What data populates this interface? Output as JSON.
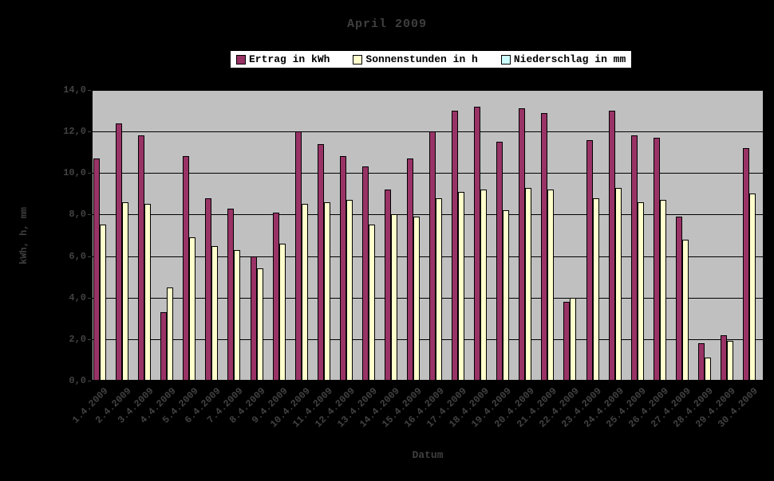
{
  "title": "April 2009",
  "axes": {
    "x_title": "Datum",
    "y_title": "kWh, h, mm"
  },
  "legend": {
    "entries": [
      "Ertrag in kWh",
      "Sonnenstunden in h",
      "Niederschlag in mm"
    ]
  },
  "colors": {
    "background": "#000000",
    "plot_background": "#c0c0c0",
    "gridline": "#000000",
    "text": "#424242",
    "legend_background": "#ffffff",
    "series_ertrag": "#993366",
    "series_sonnenstunden": "#ffffcc",
    "series_niederschlag": "#ccffff"
  },
  "chart_data": {
    "type": "bar",
    "title": "April 2009",
    "xlabel": "Datum",
    "ylabel": "kWh, h, mm",
    "ylim": [
      0,
      14
    ],
    "grid": true,
    "legend_position": "top",
    "yticks": [
      {
        "value": 14,
        "label": "14,0"
      },
      {
        "value": 12,
        "label": "12,0"
      },
      {
        "value": 10,
        "label": "10,0"
      },
      {
        "value": 8,
        "label": "8,0"
      },
      {
        "value": 6,
        "label": "6,0"
      },
      {
        "value": 4,
        "label": "4,0"
      },
      {
        "value": 2,
        "label": "2,0"
      },
      {
        "value": 0,
        "label": "0,0"
      }
    ],
    "categories": [
      "1.4.2009",
      "2.4.2009",
      "3.4.2009",
      "4.4.2009",
      "5.4.2009",
      "6.4.2009",
      "7.4.2009",
      "8.4.2009",
      "9.4.2009",
      "10.4.2009",
      "11.4.2009",
      "12.4.2009",
      "13.4.2009",
      "14.4.2009",
      "15.4.2009",
      "16.4.2009",
      "17.4.2009",
      "18.4.2009",
      "19.4.2009",
      "20.4.2009",
      "21.4.2009",
      "22.4.2009",
      "23.4.2009",
      "24.4.2009",
      "25.4.2009",
      "26.4.2009",
      "27.4.2009",
      "28.4.2009",
      "29.4.2009",
      "30.4.2009"
    ],
    "series": [
      {
        "name": "Ertrag in kWh",
        "color": "#993366",
        "values": [
          10.7,
          12.4,
          11.8,
          3.3,
          10.8,
          8.8,
          8.3,
          6.0,
          8.1,
          12.0,
          11.4,
          10.8,
          10.3,
          9.2,
          10.7,
          12.0,
          13.0,
          13.2,
          11.5,
          13.1,
          12.9,
          3.8,
          11.6,
          13.0,
          11.8,
          11.7,
          7.9,
          1.8,
          2.2,
          11.2
        ]
      },
      {
        "name": "Sonnenstunden in h",
        "color": "#ffffcc",
        "values": [
          7.5,
          8.6,
          8.5,
          4.5,
          6.9,
          6.5,
          6.3,
          5.4,
          6.6,
          8.5,
          8.6,
          8.7,
          7.5,
          8.0,
          7.9,
          8.8,
          9.1,
          9.2,
          8.2,
          9.3,
          9.2,
          4.0,
          8.8,
          9.3,
          8.6,
          8.7,
          6.8,
          1.1,
          1.9,
          9.0
        ]
      },
      {
        "name": "Niederschlag in mm",
        "color": "#ccffff",
        "values": [
          0,
          0,
          0,
          0,
          0,
          0,
          0,
          0,
          0,
          0,
          0,
          0,
          0,
          0,
          0,
          0,
          0,
          0,
          0,
          0,
          0,
          0,
          0,
          0,
          0,
          0,
          0,
          0,
          0,
          0
        ]
      }
    ]
  }
}
